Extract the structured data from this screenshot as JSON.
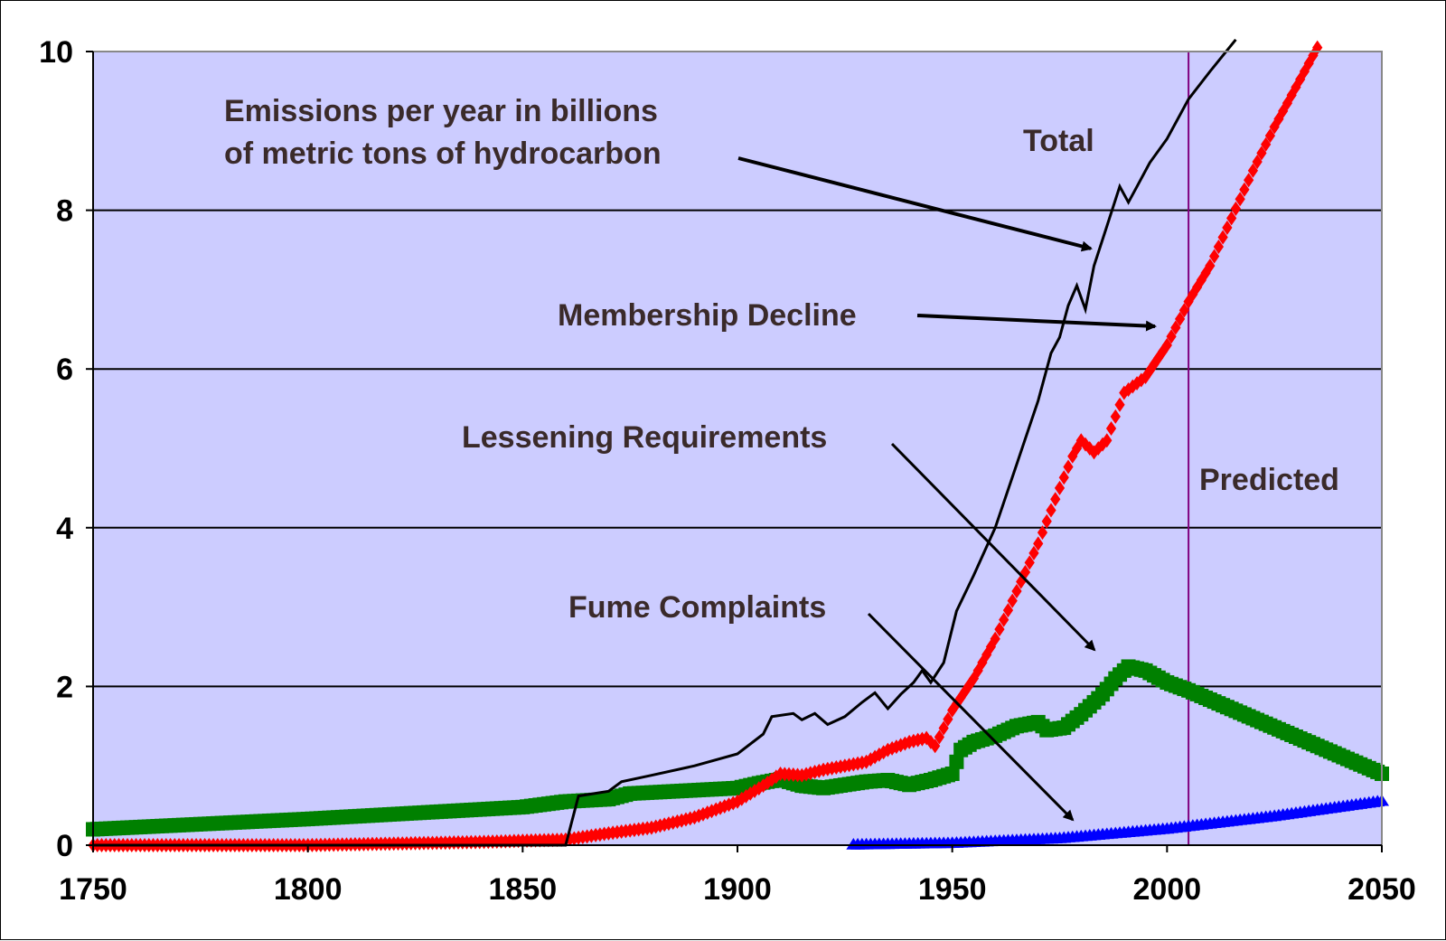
{
  "chart_data": {
    "type": "line",
    "xlim": [
      1750,
      2050
    ],
    "ylim": [
      0,
      10
    ],
    "x_ticks": [
      "1750",
      "1800",
      "1850",
      "1900",
      "1950",
      "2000",
      "2050"
    ],
    "y_ticks": [
      "0",
      "2",
      "4",
      "6",
      "8",
      "10"
    ],
    "grid": "horizontal",
    "plot_background": "#ccccff",
    "series": [
      {
        "name": "Total",
        "color": "#000000",
        "style": "line",
        "points": [
          [
            1750,
            0.0
          ],
          [
            1860,
            0.0
          ],
          [
            1863,
            0.62
          ],
          [
            1870,
            0.68
          ],
          [
            1873,
            0.8
          ],
          [
            1880,
            0.88
          ],
          [
            1890,
            1.0
          ],
          [
            1900,
            1.15
          ],
          [
            1906,
            1.4
          ],
          [
            1908,
            1.62
          ],
          [
            1913,
            1.66
          ],
          [
            1915,
            1.58
          ],
          [
            1918,
            1.66
          ],
          [
            1921,
            1.52
          ],
          [
            1925,
            1.62
          ],
          [
            1929,
            1.8
          ],
          [
            1932,
            1.92
          ],
          [
            1935,
            1.72
          ],
          [
            1938,
            1.9
          ],
          [
            1941,
            2.05
          ],
          [
            1943,
            2.2
          ],
          [
            1945,
            2.05
          ],
          [
            1948,
            2.3
          ],
          [
            1951,
            2.95
          ],
          [
            1955,
            3.4
          ],
          [
            1960,
            4.0
          ],
          [
            1965,
            4.8
          ],
          [
            1970,
            5.6
          ],
          [
            1973,
            6.2
          ],
          [
            1975,
            6.4
          ],
          [
            1977,
            6.8
          ],
          [
            1979,
            7.05
          ],
          [
            1981,
            6.75
          ],
          [
            1983,
            7.3
          ],
          [
            1986,
            7.8
          ],
          [
            1989,
            8.3
          ],
          [
            1991,
            8.1
          ],
          [
            1993,
            8.3
          ],
          [
            1996,
            8.6
          ],
          [
            2000,
            8.9
          ],
          [
            2005,
            9.4
          ],
          [
            2010,
            9.75
          ],
          [
            2016,
            10.15
          ]
        ]
      },
      {
        "name": "Membership Decline",
        "color": "#ff0000",
        "style": "diamonds",
        "points": [
          [
            1750,
            0.0
          ],
          [
            1800,
            0.0
          ],
          [
            1820,
            0.02
          ],
          [
            1840,
            0.04
          ],
          [
            1860,
            0.07
          ],
          [
            1870,
            0.15
          ],
          [
            1880,
            0.22
          ],
          [
            1890,
            0.35
          ],
          [
            1900,
            0.55
          ],
          [
            1906,
            0.75
          ],
          [
            1910,
            0.9
          ],
          [
            1915,
            0.88
          ],
          [
            1920,
            0.95
          ],
          [
            1925,
            1.0
          ],
          [
            1930,
            1.05
          ],
          [
            1935,
            1.2
          ],
          [
            1940,
            1.3
          ],
          [
            1944,
            1.35
          ],
          [
            1946,
            1.25
          ],
          [
            1950,
            1.7
          ],
          [
            1955,
            2.1
          ],
          [
            1960,
            2.6
          ],
          [
            1965,
            3.2
          ],
          [
            1970,
            3.8
          ],
          [
            1975,
            4.5
          ],
          [
            1978,
            4.9
          ],
          [
            1980,
            5.1
          ],
          [
            1983,
            4.95
          ],
          [
            1986,
            5.1
          ],
          [
            1990,
            5.7
          ],
          [
            1995,
            5.9
          ],
          [
            2000,
            6.3
          ],
          [
            2005,
            6.85
          ],
          [
            2010,
            7.3
          ],
          [
            2015,
            7.9
          ],
          [
            2020,
            8.5
          ],
          [
            2025,
            9.05
          ],
          [
            2030,
            9.55
          ],
          [
            2035,
            10.05
          ]
        ]
      },
      {
        "name": "Lessening Requirements",
        "color": "#008000",
        "style": "squares",
        "points": [
          [
            1750,
            0.2
          ],
          [
            1800,
            0.33
          ],
          [
            1850,
            0.48
          ],
          [
            1860,
            0.55
          ],
          [
            1870,
            0.58
          ],
          [
            1875,
            0.65
          ],
          [
            1900,
            0.72
          ],
          [
            1905,
            0.78
          ],
          [
            1910,
            0.83
          ],
          [
            1915,
            0.75
          ],
          [
            1920,
            0.72
          ],
          [
            1930,
            0.8
          ],
          [
            1935,
            0.82
          ],
          [
            1940,
            0.76
          ],
          [
            1945,
            0.82
          ],
          [
            1950,
            0.9
          ],
          [
            1952,
            1.2
          ],
          [
            1955,
            1.3
          ],
          [
            1960,
            1.38
          ],
          [
            1965,
            1.5
          ],
          [
            1970,
            1.55
          ],
          [
            1972,
            1.45
          ],
          [
            1976,
            1.48
          ],
          [
            1980,
            1.65
          ],
          [
            1985,
            1.9
          ],
          [
            1988,
            2.1
          ],
          [
            1991,
            2.25
          ],
          [
            1995,
            2.2
          ],
          [
            2000,
            2.05
          ],
          [
            2005,
            1.95
          ],
          [
            2050,
            0.9
          ]
        ]
      },
      {
        "name": "Fume Complaints",
        "color": "#0000ff",
        "style": "triangles",
        "points": [
          [
            1927,
            0.0
          ],
          [
            1950,
            0.02
          ],
          [
            1975,
            0.08
          ],
          [
            2000,
            0.2
          ],
          [
            2025,
            0.36
          ],
          [
            2050,
            0.55
          ]
        ]
      }
    ],
    "annotations": [
      {
        "line1": "Emissions per year in billions",
        "line2": "of metric tons of hydrocarbon"
      },
      {
        "line1": "Total"
      },
      {
        "line1": "Membership Decline"
      },
      {
        "line1": "Lessening Requirements"
      },
      {
        "line1": "Fume Complaints"
      },
      {
        "line1": "Predicted"
      }
    ],
    "predicted_from_year": 2005,
    "predicted_line_color": "#800080"
  }
}
